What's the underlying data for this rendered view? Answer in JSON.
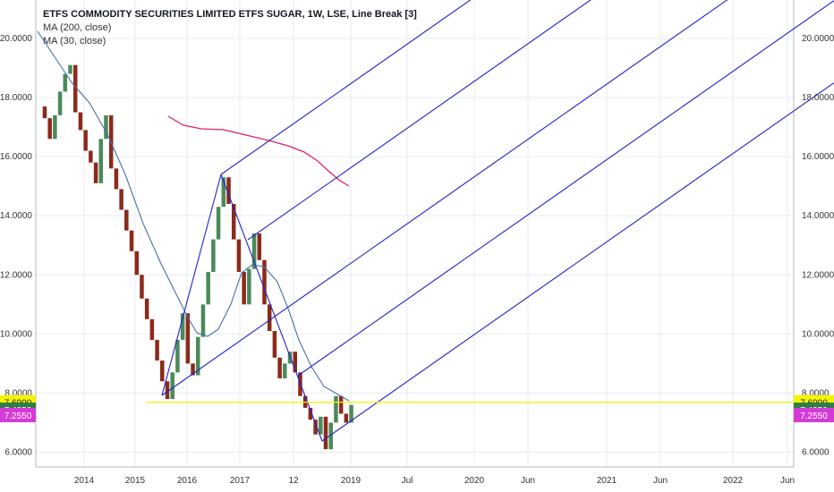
{
  "header": {
    "title": "ETFS COMMODITY SECURITIES LIMITED ETFS SUGAR, 1W, LSE, Line Break [3]",
    "ma200_label": "MA (200, close)",
    "ma30_label": "MA (30, close)"
  },
  "colors": {
    "up": "#4a8a5a",
    "down": "#8b2a1a",
    "pitchfork": "#2323cc",
    "ma200": "#e0245e",
    "ma30": "#4a6ea8",
    "hline": "#f5f500",
    "grid": "#e6ebf2"
  },
  "chart_data": {
    "type": "line-break",
    "y_ticks": [
      "20.0000",
      "18.0000",
      "16.0000",
      "14.0000",
      "12.0000",
      "10.0000",
      "8.0000",
      "6.0000"
    ],
    "x_ticks": [
      "2014",
      "2015",
      "2016",
      "2017",
      "12",
      "2019",
      "Jul",
      "2020",
      "Jun",
      "2021",
      "Jun",
      "2022",
      "Jun"
    ],
    "ylim": [
      5.5,
      21.3
    ],
    "badges": [
      {
        "value": "7.6900",
        "bg": "#f5f500",
        "fg": "#222222"
      },
      {
        "value": "7.4350",
        "bg": "#2e7d4a",
        "fg": "#ffffff"
      },
      {
        "value": "7.2550",
        "bg": "#d63ad6",
        "fg": "#ffffff"
      }
    ],
    "hline_value": 7.69,
    "price_path": [
      17.7,
      17.3,
      16.6,
      17.4,
      18.2,
      18.8,
      19.1,
      17.5,
      16.9,
      16.2,
      15.8,
      15.1,
      16.6,
      17.4,
      15.6,
      14.9,
      14.2,
      13.5,
      12.8,
      12.0,
      11.2,
      10.5,
      9.8,
      9.1,
      8.4,
      7.8,
      8.7,
      9.8,
      10.7,
      9.0,
      8.6,
      9.9,
      11.0,
      12.1,
      13.2,
      14.3,
      15.3,
      14.4,
      13.2,
      12.1,
      11.0,
      12.2,
      13.4,
      12.5,
      11.0,
      10.1,
      9.2,
      8.5,
      9.0,
      9.4,
      8.7,
      7.9,
      7.5,
      7.1,
      6.6,
      7.2,
      6.1,
      7.0,
      7.9,
      7.3,
      7.0,
      7.6
    ]
  }
}
